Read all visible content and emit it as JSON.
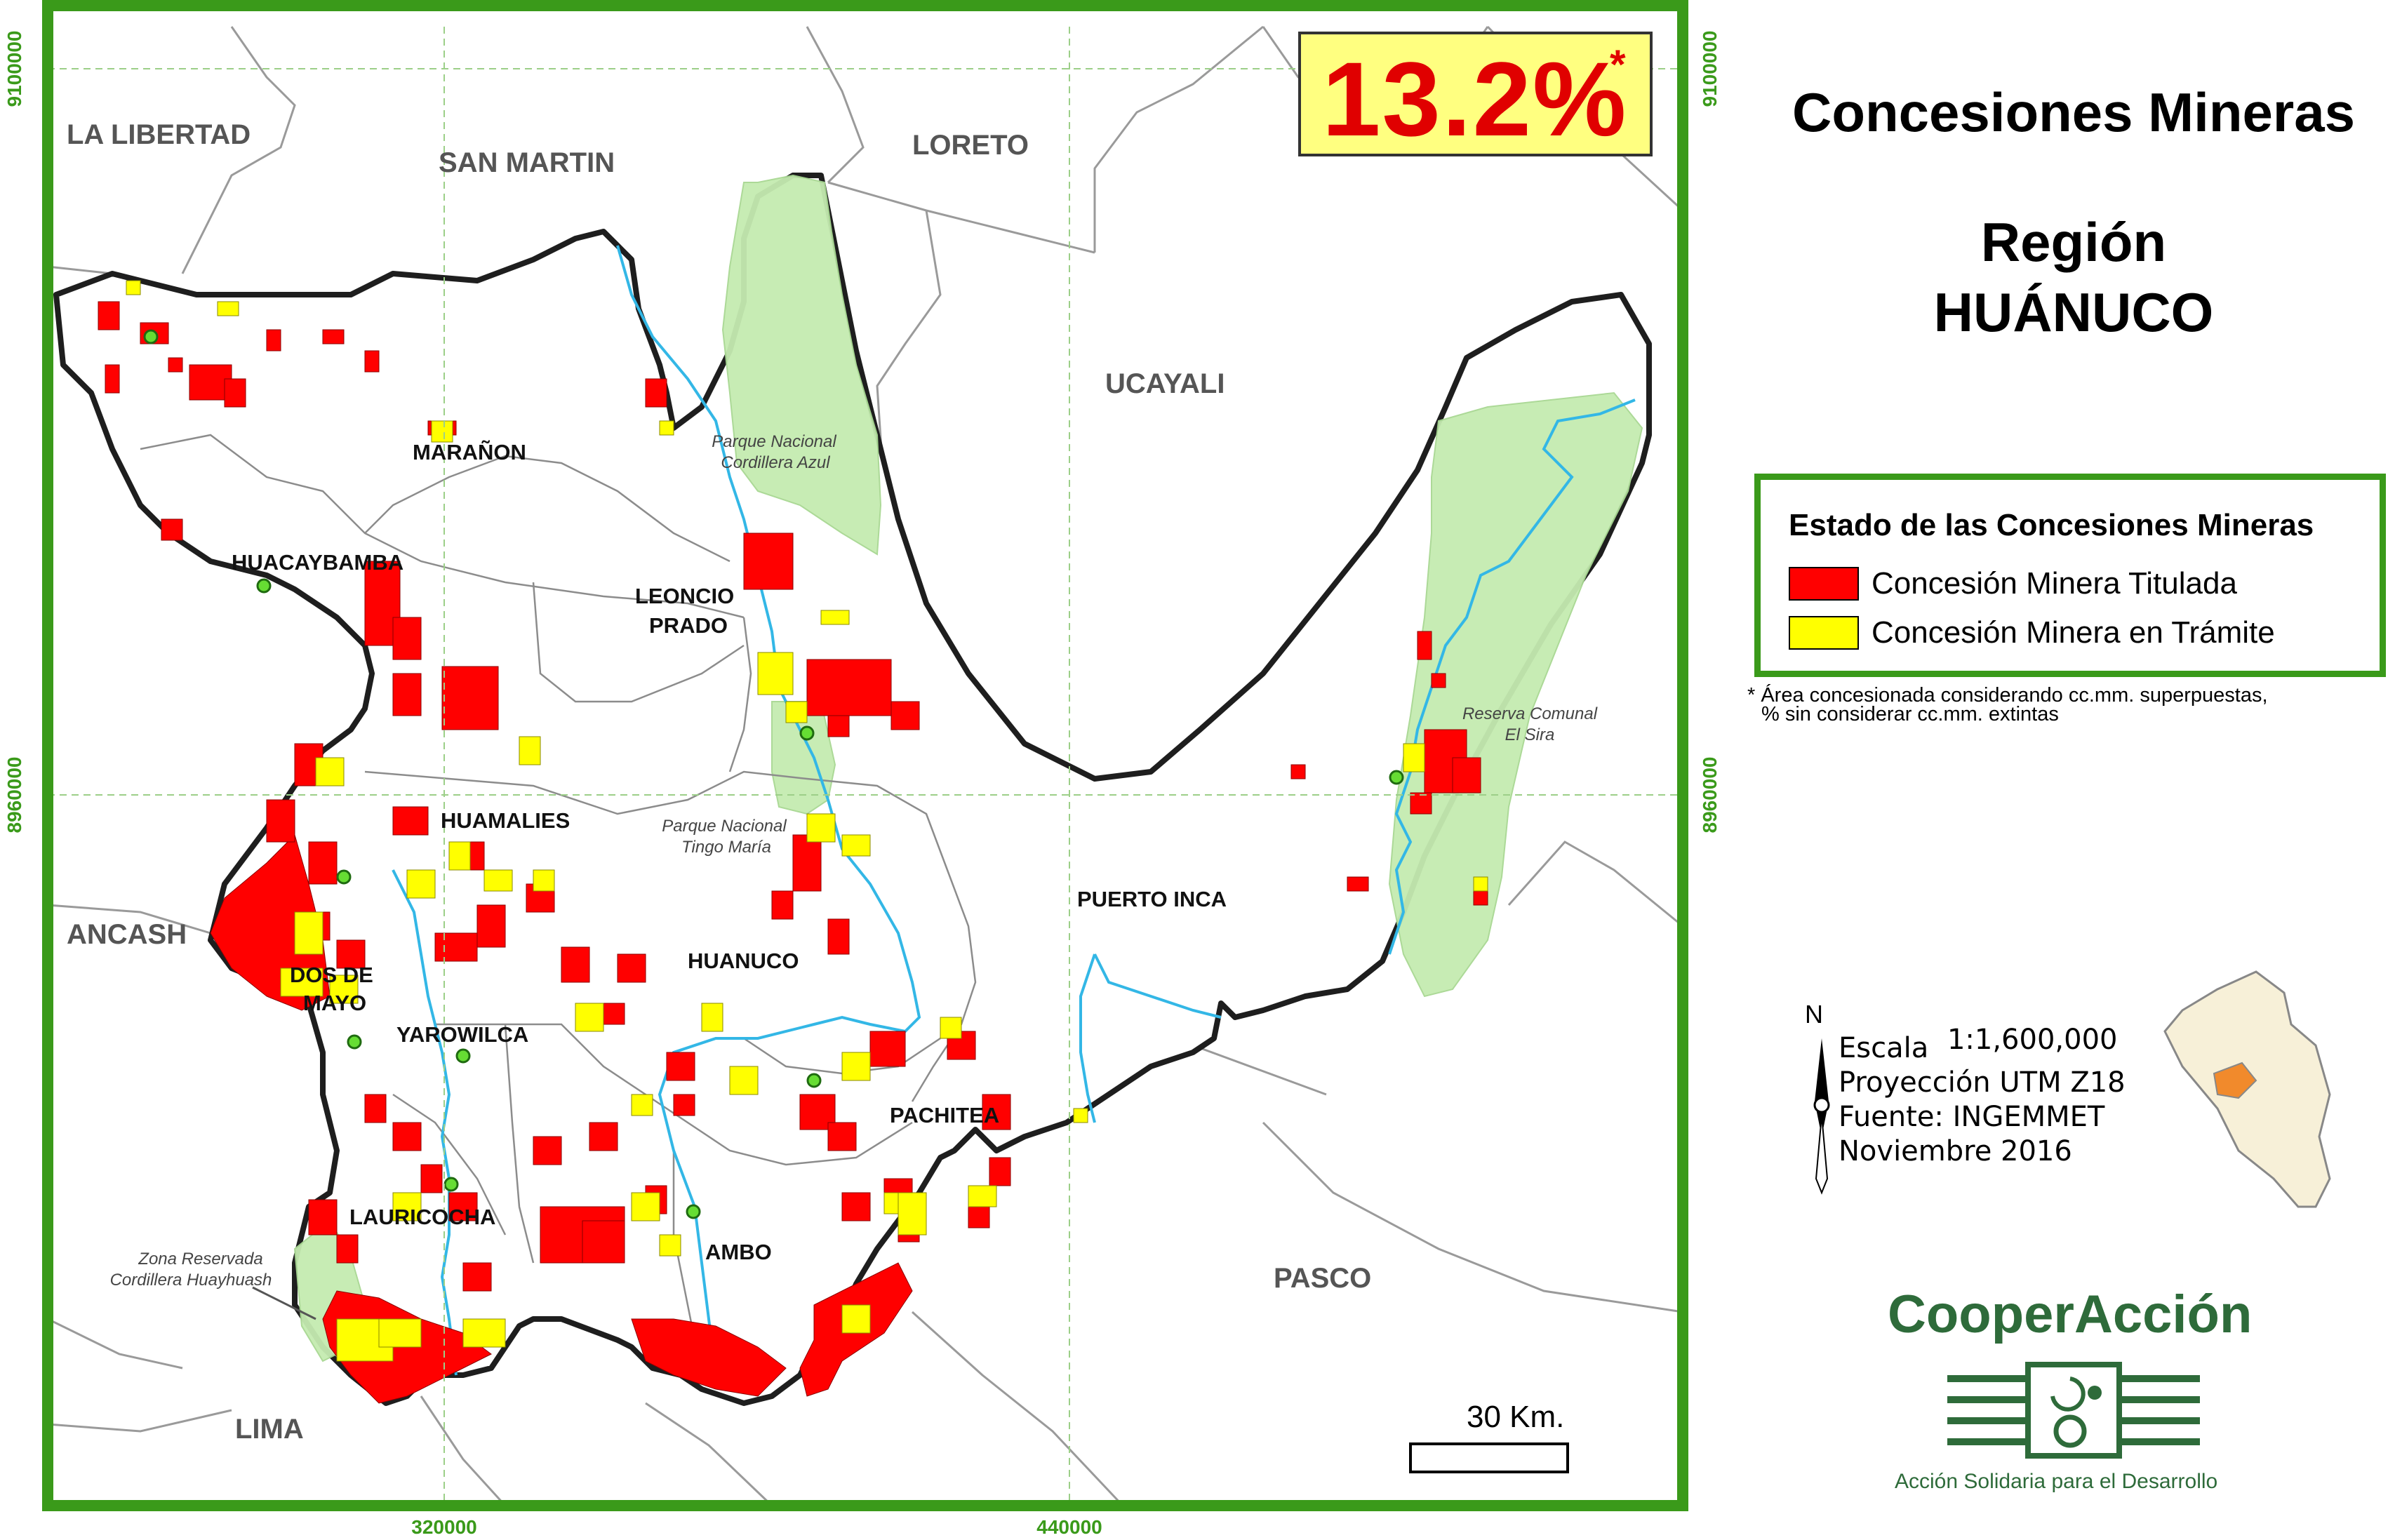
{
  "map": {
    "title_line1": "Concesiones Mineras",
    "title_line2": "Región",
    "title_line3": "HUÁNUCO",
    "percentage": "13.2%",
    "percentage_mark": "*",
    "colors": {
      "frame": "#3a9a1a",
      "titulada": "#ff0000",
      "tramite": "#ffff00",
      "protected_area": "#c9ecb4",
      "river": "#33b7e6",
      "region_border": "#222222"
    }
  },
  "grid": {
    "x_labels": [
      "320000",
      "440000"
    ],
    "y_labels": [
      "9100000",
      "8960000"
    ]
  },
  "neighbors": [
    "LA LIBERTAD",
    "SAN MARTIN",
    "LORETO",
    "UCAYALI",
    "ANCASH",
    "PASCO",
    "LIMA"
  ],
  "provinces": {
    "maranon": "MARAÑON",
    "huacaybamba": "HUACAYBAMBA",
    "leoncio_1": "LEONCIO",
    "leoncio_2": "PRADO",
    "huamalies": "HUAMALIES",
    "dos_de_mayo_1": "DOS DE",
    "dos_de_mayo_2": "MAYO",
    "yarowilca": "YAROWILCA",
    "huanuco": "HUANUCO",
    "puerto_inca": "PUERTO INCA",
    "pachitea": "PACHITEA",
    "lauricocha": "LAURICOCHA",
    "ambo": "AMBO"
  },
  "protected_areas": {
    "cordillera_azul_1": "Parque Nacional",
    "cordillera_azul_2": "Cordillera Azul",
    "tingo_maria_1": "Parque Nacional",
    "tingo_maria_2": "Tingo María",
    "el_sira_1": "Reserva Comunal",
    "el_sira_2": "El Sira",
    "huayhuash_1": "Zona Reservada",
    "huayhuash_2": "Cordillera Huayhuash"
  },
  "legend": {
    "title": "Estado de las Concesiones Mineras",
    "items": [
      {
        "label": "Concesión Minera Titulada",
        "color": "#ff0000"
      },
      {
        "label": "Concesión Minera en Trámite",
        "color": "#ffff00"
      }
    ]
  },
  "footnote": {
    "line1": "* Área concesionada considerando cc.mm. superpuestas,",
    "line2": "% sin considerar cc.mm. extintas"
  },
  "info": {
    "north": "N",
    "scale_label": "Escala",
    "scale_value": "1:1,600,000",
    "projection": "Proyección UTM Z18",
    "source": "Fuente: INGEMMET",
    "date": "Noviembre 2016"
  },
  "scalebar": {
    "label": "30 Km."
  },
  "brand": {
    "name": "CooperAcción",
    "tagline": "Acción Solidaria para el Desarrollo"
  }
}
